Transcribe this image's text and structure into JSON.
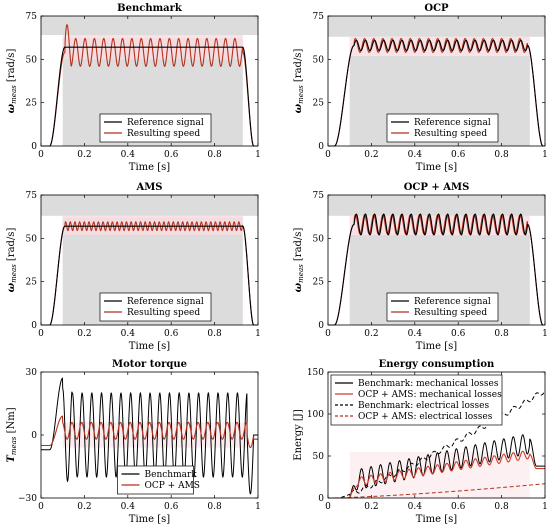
{
  "colors": {
    "reference": "#000000",
    "speed": "#b4321e",
    "gray_band": "#dcdcdc",
    "pink_band": "#f8dde2",
    "ocp_mech": "#d23c2a",
    "ocp_elec": "#b4321e",
    "bench_mech": "#000000",
    "bench_elec": "#000000",
    "ocp_torque": "#b4321e"
  },
  "chart_data": [
    {
      "id": "benchmark",
      "type": "line",
      "title": "Benchmark",
      "xlabel": "Time [s]",
      "ylabel_main": "ω",
      "ylabel_sub": "meas",
      "ylabel_unit": "[rad/s]",
      "xlim": [
        0,
        1
      ],
      "ylim": [
        0,
        75
      ],
      "xticks": [
        "0",
        "0.2",
        "0.4",
        "0.6",
        "0.8",
        "1"
      ],
      "yticks": [
        "0",
        "25",
        "50",
        "75"
      ],
      "legend": [
        "Reference signal",
        "Resulting speed"
      ],
      "legend_position": "bottom-center",
      "reference": {
        "t_start": 0.04,
        "t_ramp_end": 0.11,
        "t_fall_start": 0.93,
        "t_end": 0.98,
        "level": 57
      },
      "speed": {
        "t_start": 0.04,
        "t_ramp_end": 0.11,
        "t_fall_start": 0.93,
        "t_end": 0.98,
        "mean": 54,
        "amplitude": 8,
        "cycles": 19,
        "overshoot": 72
      },
      "band_gray": {
        "x": [
          0.1,
          0.93
        ],
        "y": [
          0,
          62
        ]
      },
      "band_pink": {
        "x": [
          0.1,
          0.93
        ],
        "y": [
          50,
          64
        ]
      }
    },
    {
      "id": "ocp",
      "type": "line",
      "title": "OCP",
      "xlabel": "Time [s]",
      "ylabel_main": "ω",
      "ylabel_sub": "meas",
      "ylabel_unit": "[rad/s]",
      "xlim": [
        0,
        1
      ],
      "ylim": [
        0,
        75
      ],
      "xticks": [
        "0",
        "0.2",
        "0.4",
        "0.6",
        "0.8",
        "1"
      ],
      "yticks": [
        "0",
        "25",
        "50",
        "75"
      ],
      "legend": [
        "Reference signal",
        "Resulting speed"
      ],
      "legend_position": "bottom-center",
      "reference": {
        "t_start": 0.03,
        "t_ramp_end": 0.12,
        "t_fall_start": 0.92,
        "t_end": 0.99,
        "level": 58,
        "amplitude": 3,
        "cycles": 19
      },
      "speed": {
        "t_start": 0.03,
        "t_ramp_end": 0.12,
        "t_fall_start": 0.92,
        "t_end": 0.99,
        "mean": 58,
        "amplitude": 4,
        "cycles": 19
      },
      "band_gray": {
        "x": [
          0.1,
          0.93
        ],
        "y": [
          0,
          52
        ]
      },
      "band_pink": {
        "x": [
          0.1,
          0.93
        ],
        "y": [
          52,
          63
        ]
      }
    },
    {
      "id": "ams",
      "type": "line",
      "title": "AMS",
      "xlabel": "Time [s]",
      "ylabel_main": "ω",
      "ylabel_sub": "meas",
      "ylabel_unit": "[rad/s]",
      "xlim": [
        0,
        1
      ],
      "ylim": [
        0,
        75
      ],
      "xticks": [
        "0",
        "0.2",
        "0.4",
        "0.6",
        "0.8",
        "1"
      ],
      "yticks": [
        "0",
        "25",
        "50",
        "75"
      ],
      "legend": [
        "Reference signal",
        "Resulting speed"
      ],
      "legend_position": "bottom-center",
      "reference": {
        "t_start": 0.04,
        "t_ramp_end": 0.11,
        "t_fall_start": 0.93,
        "t_end": 0.98,
        "level": 57
      },
      "speed": {
        "t_start": 0.04,
        "t_ramp_end": 0.11,
        "t_fall_start": 0.93,
        "t_end": 0.98,
        "mean": 57,
        "amplitude": 2.5,
        "cycles": 38
      },
      "band_gray": {
        "x": [
          0.1,
          0.93
        ],
        "y": [
          0,
          62
        ]
      },
      "band_pink": {
        "x": [
          0.1,
          0.93
        ],
        "y": [
          52,
          63
        ]
      }
    },
    {
      "id": "ocp_ams",
      "type": "line",
      "title": "OCP + AMS",
      "xlabel": "Time [s]",
      "ylabel_main": "ω",
      "ylabel_sub": "meas",
      "ylabel_unit": "[rad/s]",
      "xlim": [
        0,
        1
      ],
      "ylim": [
        0,
        75
      ],
      "xticks": [
        "0",
        "0.2",
        "0.4",
        "0.6",
        "0.8",
        "1"
      ],
      "yticks": [
        "0",
        "25",
        "50",
        "75"
      ],
      "legend": [
        "Reference signal",
        "Resulting speed"
      ],
      "legend_position": "bottom-center",
      "reference": {
        "t_start": 0.03,
        "t_ramp_end": 0.12,
        "t_fall_start": 0.92,
        "t_end": 0.99,
        "level": 58,
        "amplitude": 6,
        "cycles": 19
      },
      "speed": {
        "t_start": 0.03,
        "t_ramp_end": 0.12,
        "t_fall_start": 0.92,
        "t_end": 0.99,
        "mean": 58,
        "amplitude": 5.5,
        "cycles": 19
      },
      "band_gray": {
        "x": [
          0.1,
          0.93
        ],
        "y": [
          0,
          52
        ]
      },
      "band_pink": {
        "x": [
          0.1,
          0.93
        ],
        "y": [
          52,
          63
        ]
      }
    },
    {
      "id": "motor_torque",
      "type": "line",
      "title": "Motor torque",
      "xlabel": "Time [s]",
      "ylabel_main": "T",
      "ylabel_sub": "meas",
      "ylabel_unit": "[Nm]",
      "xlim": [
        0,
        1
      ],
      "ylim": [
        -30,
        30
      ],
      "xticks": [
        "0",
        "0.2",
        "0.4",
        "0.6",
        "0.8",
        "1"
      ],
      "yticks": [
        "−30",
        "0",
        "30"
      ],
      "ytick_values": [
        -30,
        0,
        30
      ],
      "legend": [
        "Benchmark",
        "OCP + AMS"
      ],
      "legend_position": "bottom-center",
      "benchmark": {
        "pre_level": -7,
        "amplitude": 20,
        "mean": 0,
        "cycles": 19,
        "peak_first": 27,
        "dip_end": -28
      },
      "ocp_ams": {
        "pre_level": -5,
        "amplitude": 4,
        "mean": 2,
        "cycles": 19,
        "peak_first": 9
      }
    },
    {
      "id": "energy",
      "type": "line",
      "title": "Energy consumption",
      "xlabel": "Time [s]",
      "ylabel_main": "Energy [J]",
      "xlim": [
        0,
        1
      ],
      "ylim": [
        0,
        150
      ],
      "xticks": [
        "0",
        "0.2",
        "0.4",
        "0.6",
        "0.8",
        "1"
      ],
      "yticks": [
        "0",
        "50",
        "100",
        "150"
      ],
      "legend": [
        "Benchmark: mechanical losses",
        "OCP + AMS: mechanical losses",
        "Benchmark: electrical losses",
        "OCP + AMS: electrical losses"
      ],
      "legend_position": "top-left",
      "series": [
        {
          "name": "Benchmark: mechanical losses",
          "style": "solid",
          "end_value": 70,
          "osc": 12,
          "drop_to": 38
        },
        {
          "name": "OCP + AMS: mechanical losses",
          "style": "solid",
          "end_value": 52,
          "osc": 5,
          "drop_to": 35
        },
        {
          "name": "Benchmark: electrical losses",
          "style": "dashed",
          "end_value": 128
        },
        {
          "name": "OCP + AMS: electrical losses",
          "style": "dashed",
          "end_value": 17
        }
      ]
    }
  ]
}
